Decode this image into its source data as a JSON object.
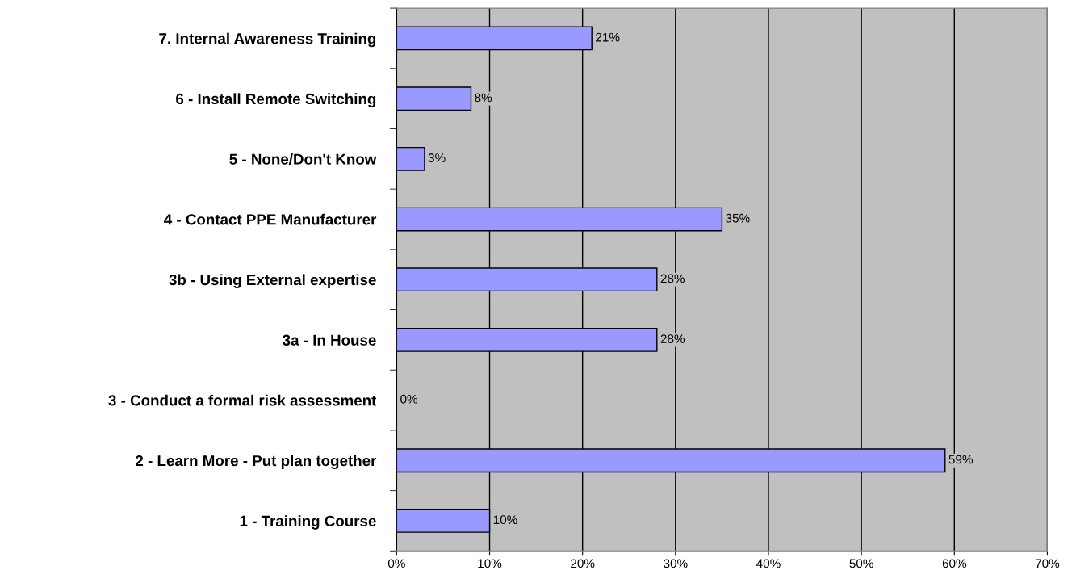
{
  "chart_data": {
    "type": "bar",
    "orientation": "horizontal",
    "categories": [
      "7. Internal Awareness Training",
      "6 - Install Remote Switching",
      "5 - None/Don't Know",
      "4 - Contact PPE Manufacturer",
      "3b - Using External expertise",
      "3a - In House",
      "3 - Conduct a formal risk assessment",
      "2 - Learn More - Put plan together",
      "1 - Training Course"
    ],
    "values": [
      21,
      8,
      3,
      35,
      28,
      28,
      0,
      59,
      10
    ],
    "value_labels": [
      "21%",
      "8%",
      "3%",
      "35%",
      "28%",
      "28%",
      "0%",
      "59%",
      "10%"
    ],
    "color": "#9999ff",
    "xlim": [
      0,
      70
    ],
    "xticks": [
      {
        "value": 0,
        "label": "0%"
      },
      {
        "value": 10,
        "label": "10%"
      },
      {
        "value": 20,
        "label": "20%"
      },
      {
        "value": 30,
        "label": "30%"
      },
      {
        "value": 40,
        "label": "40%"
      },
      {
        "value": 50,
        "label": "50%"
      },
      {
        "value": 60,
        "label": "60%"
      },
      {
        "value": 70,
        "label": "70%"
      }
    ],
    "grid": "x"
  }
}
